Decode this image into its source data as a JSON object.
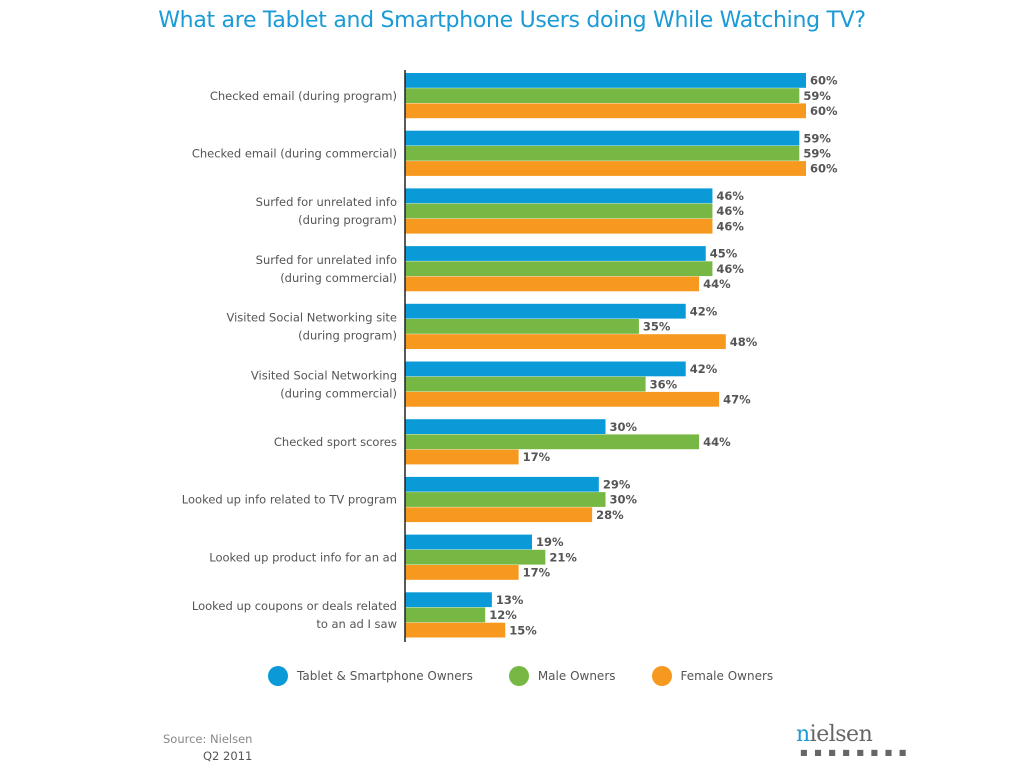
{
  "chart_data": {
    "type": "bar",
    "orientation": "horizontal",
    "title": "What are Tablet and Smartphone Users doing While Watching TV?",
    "xlabel": "",
    "ylabel": "",
    "xlim": [
      0,
      60
    ],
    "grid": false,
    "legend_position": "bottom",
    "value_suffix": "%",
    "categories": [
      [
        "Checked email (during program)"
      ],
      [
        "Checked email (during commercial)"
      ],
      [
        "Surfed for unrelated info",
        "(during program)"
      ],
      [
        "Surfed for unrelated info",
        "(during commercial)"
      ],
      [
        "Visited Social Networking site",
        "(during program)"
      ],
      [
        "Visited Social Networking",
        "(during commercial)"
      ],
      [
        "Checked sport scores"
      ],
      [
        "Looked up info related to TV program"
      ],
      [
        "Looked up product info for an ad"
      ],
      [
        "Looked up coupons or deals related",
        "to an ad I saw"
      ]
    ],
    "series": [
      {
        "name": "Tablet & Smartphone Owners",
        "color": "#0a9ad8",
        "values": [
          60,
          59,
          46,
          45,
          42,
          42,
          30,
          29,
          19,
          13
        ]
      },
      {
        "name": "Male Owners",
        "color": "#76b843",
        "values": [
          59,
          59,
          46,
          46,
          35,
          36,
          44,
          30,
          21,
          12
        ]
      },
      {
        "name": "Female Owners",
        "color": "#f7981f",
        "values": [
          60,
          60,
          46,
          44,
          48,
          47,
          17,
          28,
          17,
          15
        ]
      }
    ]
  },
  "footer": {
    "source": "Source: Nielsen",
    "period": "Q2 2011",
    "logo": {
      "first_letter": "n",
      "rest": "ielsen",
      "dots": "■ ■ ■ ■ ■ ■ ■ ■"
    }
  }
}
